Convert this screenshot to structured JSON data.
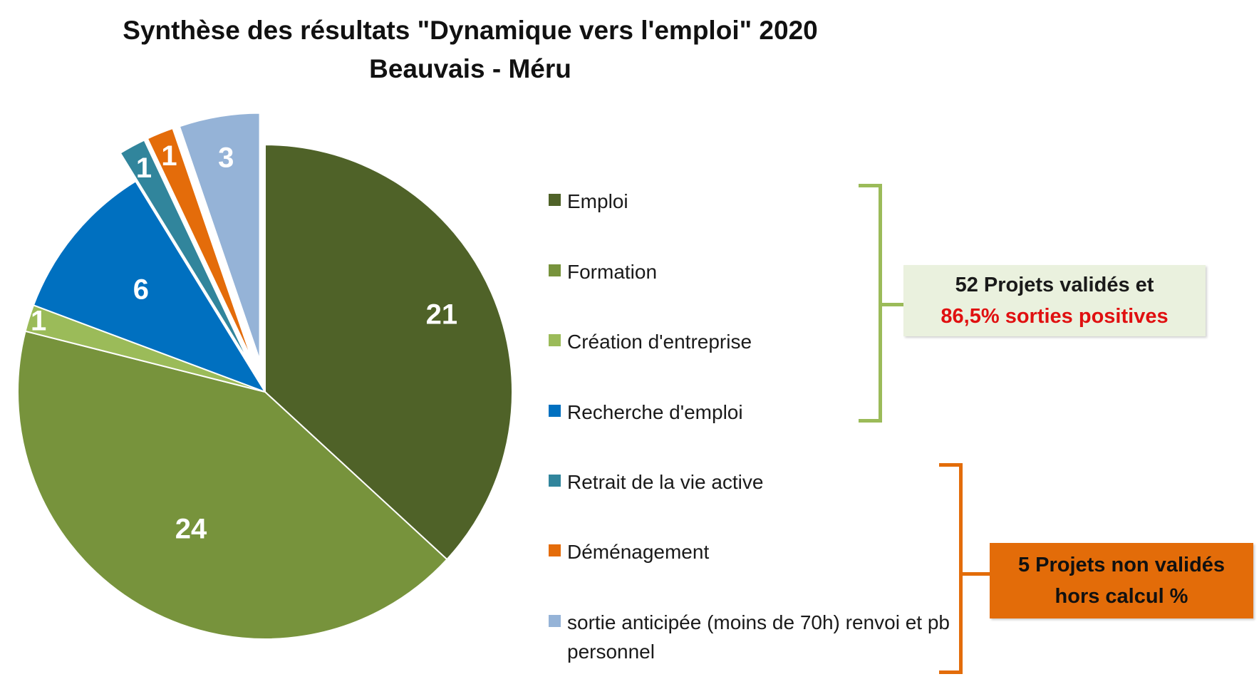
{
  "chart_data": {
    "type": "pie",
    "title": "Synthèse des résultats \"Dynamique vers l'emploi\" 2020",
    "subtitle": "Beauvais - Méru",
    "slices": [
      {
        "label": "Emploi",
        "value": 21,
        "color": "#4f6228",
        "exploded": false
      },
      {
        "label": "Formation",
        "value": 24,
        "color": "#77933c",
        "exploded": false
      },
      {
        "label": "Création d'entreprise",
        "value": 1,
        "color": "#9bbb59",
        "exploded": false
      },
      {
        "label": "Recherche d'emploi",
        "value": 6,
        "color": "#0070c0",
        "exploded": false
      },
      {
        "label": "Retrait de la vie active",
        "value": 1,
        "color": "#31859c",
        "exploded": true
      },
      {
        "label": "Déménagement",
        "value": 1,
        "color": "#e46c0a",
        "exploded": true
      },
      {
        "label": "sortie anticipée (moins de 70h) renvoi et pb personnel",
        "value": 3,
        "color": "#95b3d7",
        "exploded": true
      }
    ],
    "legend": "right",
    "annotations": [
      {
        "group": "validated",
        "line1": "52 Projets validés et",
        "line2": "86,5%  sorties positives",
        "color": "#9bbb59",
        "line2_color": "#e01010",
        "background": "#eaf1de"
      },
      {
        "group": "non-validated",
        "line1": "5 Projets  non validés",
        "line2": "hors calcul %",
        "color": "#e36c09",
        "background": "#e36c09"
      }
    ]
  }
}
